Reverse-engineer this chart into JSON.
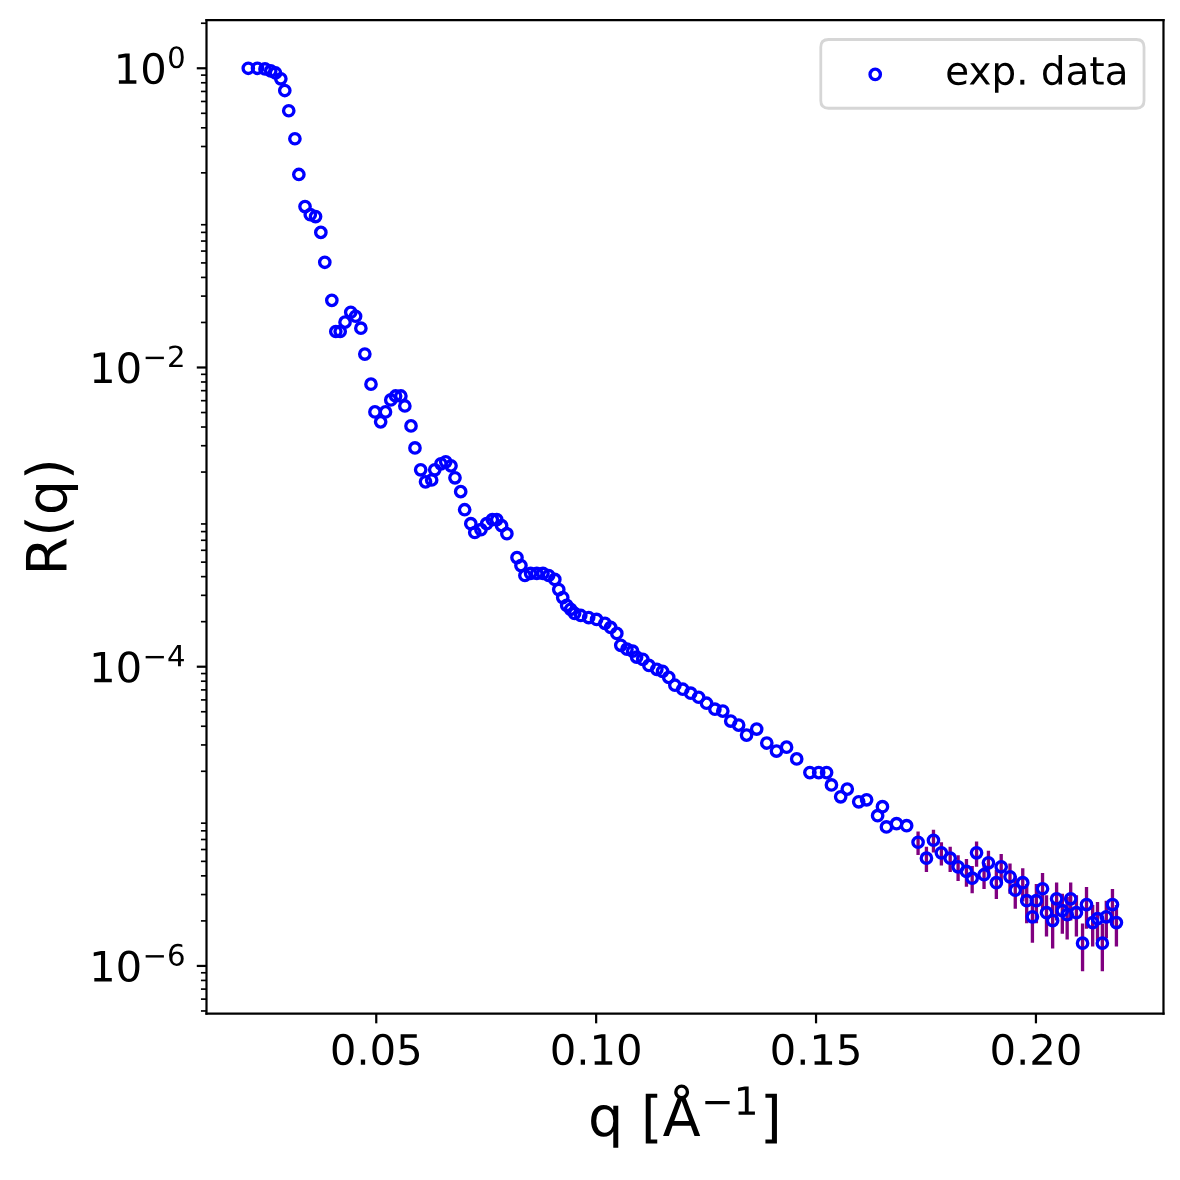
{
  "chart_data": {
    "type": "scatter",
    "xlabel": "q [Å$^{−1}$]",
    "ylabel": "R(q)",
    "log": "y",
    "legend": "top right",
    "marker": "circle",
    "grid": false,
    "xlim": [
      0.0114,
      0.229
    ],
    "xticks": [
      0.05,
      {
        "value": 0.1,
        "label": "0.10"
      },
      0.15,
      {
        "value": 0.2,
        "label": "0.20"
      }
    ],
    "ylim": [
      4.8e-07,
      2.1
    ],
    "yticks": [
      {
        "value": 1,
        "label": "10$^{0}$"
      },
      {
        "value": 0.01,
        "label": "10$^{−2}$"
      },
      {
        "value": 0.0001,
        "label": "10$^{−4}$"
      },
      {
        "value": 1e-06,
        "label": "10$^{−6}$"
      }
    ],
    "series": [
      {
        "name": "exp. data",
        "color": "#0000ff",
        "x": [
          0.0209,
          0.023,
          0.0247,
          0.026,
          0.0271,
          0.0283,
          0.0292,
          0.0301,
          0.0315,
          0.0324,
          0.0338,
          0.035,
          0.0362,
          0.0374,
          0.0383,
          0.0399,
          0.0408,
          0.0418,
          0.0429,
          0.0442,
          0.0453,
          0.0465,
          0.0474,
          0.0488,
          0.0497,
          0.051,
          0.0521,
          0.0533,
          0.0544,
          0.0556,
          0.0565,
          0.0579,
          0.0588,
          0.0601,
          0.0612,
          0.0626,
          0.0633,
          0.0647,
          0.0658,
          0.067,
          0.0679,
          0.0692,
          0.0701,
          0.0715,
          0.0724,
          0.0738,
          0.0751,
          0.0764,
          0.0774,
          0.0785,
          0.0797,
          0.082,
          0.0829,
          0.0838,
          0.0851,
          0.0865,
          0.0879,
          0.0892,
          0.0906,
          0.0915,
          0.0924,
          0.0933,
          0.0942,
          0.0951,
          0.0965,
          0.0983,
          0.1001,
          0.102,
          0.1033,
          0.1047,
          0.1056,
          0.107,
          0.1083,
          0.1092,
          0.1106,
          0.112,
          0.1138,
          0.1151,
          0.1165,
          0.1179,
          0.1197,
          0.1215,
          0.1233,
          0.1251,
          0.127,
          0.1288,
          0.1306,
          0.1324,
          0.1342,
          0.1365,
          0.1388,
          0.141,
          0.1433,
          0.1456,
          0.1486,
          0.1506,
          0.1524,
          0.1535,
          0.1556,
          0.1571,
          0.1597,
          0.1615,
          0.164,
          0.1651,
          0.166,
          0.1683,
          0.1706,
          0.1732,
          0.1751,
          0.1767,
          0.1785,
          0.1805,
          0.1823,
          0.1842,
          0.1855,
          0.1865,
          0.1882,
          0.1892,
          0.191,
          0.1921,
          0.1941,
          0.1953,
          0.197,
          0.1979,
          0.1992,
          0.2001,
          0.2015,
          0.2024,
          0.2038,
          0.2047,
          0.206,
          0.2071,
          0.2079,
          0.2092,
          0.2106,
          0.2115,
          0.2129,
          0.214,
          0.2151,
          0.216,
          0.2174,
          0.2183
        ],
        "values": [
          1.0,
          1.0,
          0.99,
          0.96,
          0.93,
          0.85,
          0.71,
          0.52,
          0.338,
          0.195,
          0.119,
          0.105,
          0.102,
          0.08,
          0.0505,
          0.0281,
          0.0174,
          0.0174,
          0.0201,
          0.0234,
          0.022,
          0.0183,
          0.0123,
          0.00774,
          0.00505,
          0.00433,
          0.00505,
          0.00607,
          0.00645,
          0.00645,
          0.00553,
          0.00407,
          0.0029,
          0.00207,
          0.00172,
          0.00177,
          0.00207,
          0.00227,
          0.00234,
          0.0022,
          0.00183,
          0.00148,
          0.00112,
          0.000904,
          0.000789,
          0.000824,
          0.000904,
          0.000961,
          0.000961,
          0.000877,
          0.000775,
          0.000536,
          0.000474,
          0.000407,
          0.00042,
          0.00042,
          0.00042,
          0.000407,
          0.000383,
          0.000328,
          0.00029,
          0.000257,
          0.000242,
          0.000227,
          0.00022,
          0.000213,
          0.000207,
          0.000195,
          0.000183,
          0.000167,
          0.000139,
          0.000131,
          0.000127,
          0.000116,
          0.000112,
          0.000102,
          9.61e-05,
          9.31e-05,
          8.49e-05,
          7.52e-05,
          7.07e-05,
          6.65e-05,
          6.25e-05,
          5.7e-05,
          5.2e-05,
          5.05e-05,
          4.33e-05,
          4.07e-05,
          3.49e-05,
          3.83e-05,
          3.09e-05,
          2.73e-05,
          2.9e-05,
          2.42e-05,
          1.96e-05,
          1.96e-05,
          1.96e-05,
          1.62e-05,
          1.35e-05,
          1.52e-05,
          1.25e-05,
          1.29e-05,
          1.01e-05,
          1.16e-05,
          8.49e-06,
          8.93e-06,
          8.66e-06,
          6.71e-06,
          5.25e-06,
          6.92e-06,
          5.7e-06,
          5.25e-06,
          4.6e-06,
          4.28e-06,
          3.86e-06,
          5.7e-06,
          4.07e-06,
          4.89e-06,
          3.6e-06,
          4.6e-06,
          3.94e-06,
          3.21e-06,
          3.6e-06,
          2.73e-06,
          2.13e-06,
          2.73e-06,
          3.28e-06,
          2.27e-06,
          2.01e-06,
          2.81e-06,
          2.34e-06,
          2.2e-06,
          2.81e-06,
          2.27e-06,
          1.42e-06,
          2.57e-06,
          1.95e-06,
          2.07e-06,
          1.42e-06,
          2.13e-06,
          2.57e-06,
          1.95e-06
        ],
        "errors": [
          null,
          null,
          null,
          null,
          null,
          null,
          null,
          null,
          null,
          null,
          null,
          null,
          null,
          null,
          null,
          null,
          null,
          null,
          null,
          null,
          null,
          null,
          null,
          null,
          null,
          null,
          null,
          null,
          null,
          null,
          null,
          null,
          null,
          null,
          null,
          null,
          null,
          null,
          null,
          null,
          null,
          null,
          null,
          null,
          null,
          null,
          null,
          null,
          null,
          null,
          null,
          null,
          null,
          null,
          null,
          null,
          null,
          null,
          null,
          null,
          null,
          null,
          null,
          null,
          null,
          null,
          null,
          null,
          null,
          null,
          null,
          null,
          null,
          null,
          null,
          null,
          null,
          null,
          null,
          null,
          null,
          null,
          null,
          null,
          null,
          null,
          null,
          null,
          null,
          null,
          null,
          null,
          null,
          null,
          null,
          null,
          null,
          null,
          null,
          null,
          null,
          null,
          null,
          null,
          null,
          null,
          null,
          1.2e-06,
          1e-06,
          1.2e-06,
          1e-06,
          1e-06,
          9e-07,
          9e-07,
          8e-07,
          1.1e-06,
          8e-07,
          1e-06,
          8e-07,
          1e-06,
          9e-07,
          8e-07,
          9e-07,
          8e-07,
          7e-07,
          8e-07,
          9e-07,
          7e-07,
          7e-07,
          8e-07,
          7e-07,
          7e-07,
          8e-07,
          7e-07,
          5e-07,
          8e-07,
          6e-07,
          6e-07,
          5e-07,
          6e-07,
          7e-07,
          6e-07
        ]
      }
    ]
  }
}
